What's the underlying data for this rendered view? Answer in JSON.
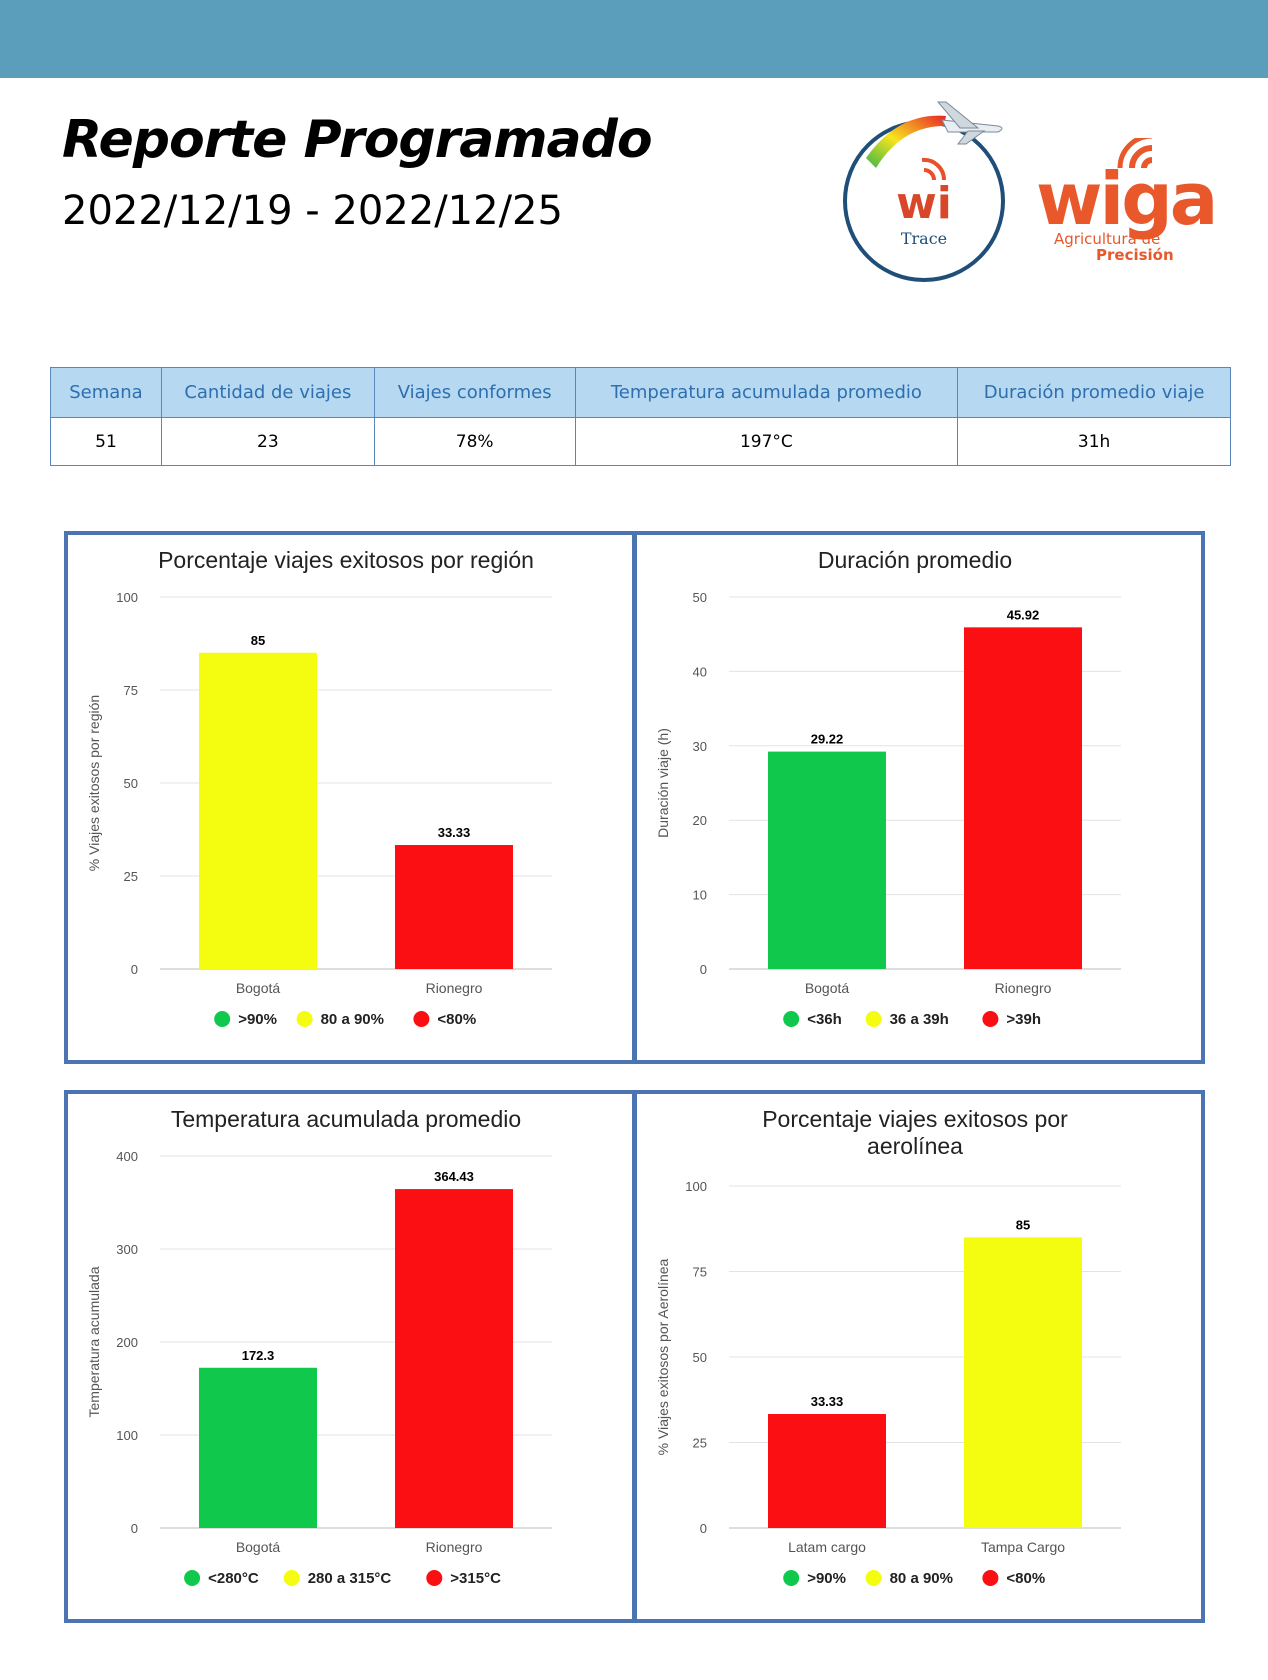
{
  "header": {
    "title": "Reporte Programado",
    "date_range": "2022/12/19 - 2022/12/25"
  },
  "logos": {
    "witrace_mark": "wi",
    "witrace_text": "Trace",
    "wiga_mark": "wiga",
    "wiga_line1": "Agricultura de",
    "wiga_line2": "Precisión"
  },
  "summary": {
    "headers": [
      "Semana",
      "Cantidad de viajes",
      "Viajes conformes",
      "Temperatura acumulada promedio",
      "Duración promedio viaje"
    ],
    "values": [
      "51",
      "23",
      "78%",
      "197°C",
      "31h"
    ]
  },
  "colors": {
    "green": "#10c94c",
    "yellow": "#f4fc10",
    "red": "#fb0f12",
    "panel_border": "#4a74b2"
  },
  "chart_data": [
    {
      "type": "bar",
      "title_lines": [
        "Porcentaje viajes exitosos por región"
      ],
      "ylabel": "% Viajes exitosos por región",
      "ylim": [
        0,
        100
      ],
      "yticks": [
        0,
        25,
        50,
        75,
        100
      ],
      "categories": [
        "Bogotá",
        "Rionegro"
      ],
      "values": [
        85,
        33.33
      ],
      "value_labels": [
        "85",
        "33.33"
      ],
      "bar_colors": [
        "yellow",
        "red"
      ],
      "legend": [
        {
          "label": ">90%",
          "color": "green"
        },
        {
          "label": "80 a 90%",
          "color": "yellow"
        },
        {
          "label": "<80%",
          "color": "red"
        }
      ]
    },
    {
      "type": "bar",
      "title_lines": [
        "Duración promedio"
      ],
      "ylabel": "Duración viaje (h)",
      "ylim": [
        0,
        50
      ],
      "yticks": [
        0,
        10,
        20,
        30,
        40,
        50
      ],
      "categories": [
        "Bogotá",
        "Rionegro"
      ],
      "values": [
        29.22,
        45.92
      ],
      "value_labels": [
        "29.22",
        "45.92"
      ],
      "bar_colors": [
        "green",
        "red"
      ],
      "legend": [
        {
          "label": "<36h",
          "color": "green"
        },
        {
          "label": "36 a 39h",
          "color": "yellow"
        },
        {
          "label": ">39h",
          "color": "red"
        }
      ]
    },
    {
      "type": "bar",
      "title_lines": [
        "Temperatura acumulada promedio"
      ],
      "ylabel": "Temperatura acumulada",
      "ylim": [
        0,
        400
      ],
      "yticks": [
        0,
        100,
        200,
        300,
        400
      ],
      "categories": [
        "Bogotá",
        "Rionegro"
      ],
      "values": [
        172.3,
        364.43
      ],
      "value_labels": [
        "172.3",
        "364.43"
      ],
      "bar_colors": [
        "green",
        "red"
      ],
      "legend": [
        {
          "label": "<280°C",
          "color": "green"
        },
        {
          "label": "280 a 315°C",
          "color": "yellow"
        },
        {
          "label": ">315°C",
          "color": "red"
        }
      ]
    },
    {
      "type": "bar",
      "title_lines": [
        "Porcentaje viajes exitosos por",
        "aerolínea"
      ],
      "ylabel": "% Viajes exitosos por Aerolínea",
      "ylim": [
        0,
        100
      ],
      "yticks": [
        0,
        25,
        50,
        75,
        100
      ],
      "categories": [
        "Latam cargo",
        "Tampa Cargo"
      ],
      "values": [
        33.33,
        85
      ],
      "value_labels": [
        "33.33",
        "85"
      ],
      "bar_colors": [
        "red",
        "yellow"
      ],
      "legend": [
        {
          "label": ">90%",
          "color": "green"
        },
        {
          "label": "80 a 90%",
          "color": "yellow"
        },
        {
          "label": "<80%",
          "color": "red"
        }
      ]
    }
  ]
}
